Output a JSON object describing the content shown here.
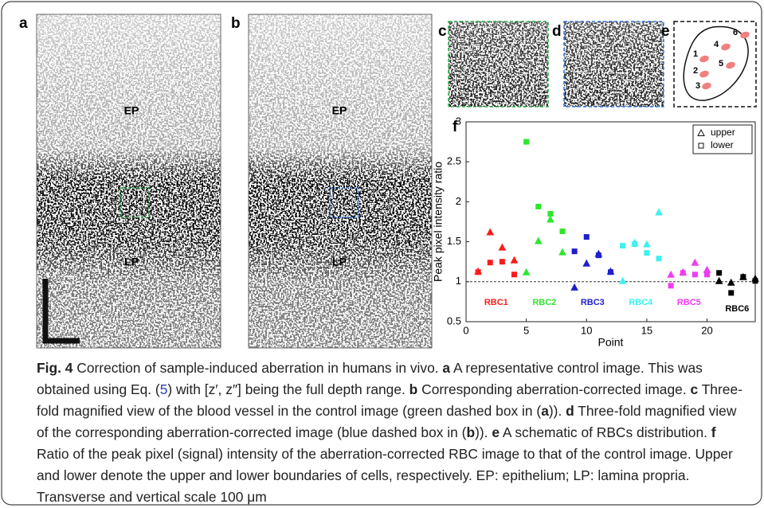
{
  "panel_labels": [
    "a",
    "b",
    "c",
    "d",
    "e",
    "f"
  ],
  "image_labels": {
    "a": [
      "EP",
      "LP"
    ],
    "b": [
      "EP",
      "LP"
    ]
  },
  "schematic_labels": [
    "1",
    "2",
    "3",
    "4",
    "5",
    "6"
  ],
  "caption": [
    "Fig. 4",
    " Correction of sample-induced aberration in humans in vivo. ",
    "a",
    " A representative control image. This was obtained using Eq. (",
    "5",
    ") with [z′, z″] being the full depth range. ",
    "b",
    " Corresponding aberration-corrected image. ",
    "c",
    " Three-fold magnified view of the blood vessel in the control image (green dashed box in (",
    "a",
    ")). ",
    "d",
    " Three-fold magnified view of the corresponding aberration-corrected image (blue dashed box in (",
    "b",
    ")). ",
    "e",
    " A schematic of RBCs distribution. ",
    "f",
    " Ratio of the peak pixel (signal) intensity of the aberration-corrected RBC image to that of the control image. Upper and lower denote the upper and lower boundaries of cells, respectively. EP: epithelium; LP: lamina propria. Transverse and vertical scale 100 μm"
  ],
  "chart_data": {
    "type": "scatter",
    "x_label": "Point",
    "y_label": "Peak pixel intensity ratio",
    "x": [
      1,
      2,
      3,
      4,
      5,
      6,
      7,
      8,
      9,
      10,
      11,
      12,
      13,
      14,
      15,
      16,
      17,
      18,
      19,
      20,
      21,
      22,
      23,
      24
    ],
    "series": [
      {
        "name": "upper",
        "marker": "triangle",
        "values": [
          1.13,
          1.62,
          1.43,
          1.27,
          1.12,
          1.51,
          1.78,
          1.37,
          0.93,
          1.23,
          1.35,
          1.13,
          1.01,
          1.49,
          1.47,
          1.87,
          1.09,
          1.12,
          1.24,
          1.15,
          1.01,
          0.99,
          1.06,
          1.04
        ]
      },
      {
        "name": "lower",
        "marker": "square",
        "values": [
          1.12,
          1.24,
          1.25,
          1.09,
          2.75,
          1.94,
          1.85,
          1.63,
          1.38,
          1.56,
          1.33,
          1.12,
          1.45,
          1.47,
          1.36,
          1.29,
          0.95,
          1.11,
          1.09,
          1.09,
          1.11,
          0.86,
          1.06,
          1.01
        ]
      }
    ],
    "colors": [
      "#ff1a1a",
      "#ff1a1a",
      "#ff1a1a",
      "#ff1a1a",
      "#2ee62e",
      "#2ee62e",
      "#2ee62e",
      "#2ee62e",
      "#1f1fcc",
      "#1f1fcc",
      "#1f1fcc",
      "#1f1fcc",
      "#3ff0f0",
      "#3ff0f0",
      "#3ff0f0",
      "#3ff0f0",
      "#f03cf0",
      "#f03cf0",
      "#f03cf0",
      "#f03cf0",
      "#000000",
      "#000000",
      "#000000",
      "#000000"
    ],
    "groups": [
      {
        "label": "RBC1",
        "color": "#ff1a1a"
      },
      {
        "label": "RBC2",
        "color": "#2ee62e"
      },
      {
        "label": "RBC3",
        "color": "#1f1fcc"
      },
      {
        "label": "RBC4",
        "color": "#3ff0f0"
      },
      {
        "label": "RBC5",
        "color": "#f03cf0"
      },
      {
        "label": "RBC6",
        "color": "#000000"
      }
    ],
    "xlim": [
      0,
      24
    ],
    "xticks": [
      0,
      5,
      10,
      15,
      20
    ],
    "ylim": [
      0.5,
      3
    ],
    "yticks": [
      0.5,
      1,
      1.5,
      2,
      2.5,
      3
    ],
    "reference_line": 1,
    "legend": "upper right"
  }
}
